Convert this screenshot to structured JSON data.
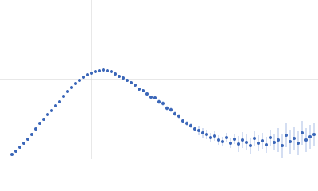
{
  "chart_data": {
    "type": "scatter",
    "x": [
      0.015,
      0.02,
      0.025,
      0.03,
      0.035,
      0.04,
      0.045,
      0.05,
      0.055,
      0.06,
      0.065,
      0.07,
      0.075,
      0.08,
      0.085,
      0.09,
      0.095,
      0.1,
      0.105,
      0.11,
      0.115,
      0.12,
      0.125,
      0.13,
      0.135,
      0.14,
      0.145,
      0.15,
      0.155,
      0.16,
      0.165,
      0.17,
      0.175,
      0.18,
      0.185,
      0.19,
      0.195,
      0.2,
      0.205,
      0.21,
      0.215,
      0.22,
      0.225,
      0.23,
      0.235,
      0.24,
      0.245,
      0.25,
      0.255,
      0.26,
      0.265,
      0.27,
      0.275,
      0.28,
      0.285,
      0.29,
      0.295,
      0.3,
      0.305,
      0.31,
      0.315,
      0.32,
      0.325,
      0.33,
      0.335,
      0.34,
      0.345,
      0.35,
      0.355,
      0.36,
      0.365,
      0.37,
      0.375,
      0.38,
      0.385,
      0.39,
      0.395
    ],
    "values": [
      0.06,
      0.1,
      0.15,
      0.2,
      0.25,
      0.31,
      0.38,
      0.45,
      0.5,
      0.56,
      0.61,
      0.67,
      0.72,
      0.79,
      0.85,
      0.9,
      0.95,
      0.99,
      1.03,
      1.06,
      1.08,
      1.1,
      1.11,
      1.12,
      1.11,
      1.1,
      1.07,
      1.04,
      1.02,
      0.99,
      0.96,
      0.93,
      0.88,
      0.86,
      0.82,
      0.78,
      0.77,
      0.72,
      0.7,
      0.64,
      0.62,
      0.57,
      0.54,
      0.48,
      0.45,
      0.42,
      0.38,
      0.36,
      0.33,
      0.31,
      0.27,
      0.29,
      0.24,
      0.22,
      0.27,
      0.2,
      0.25,
      0.19,
      0.24,
      0.21,
      0.17,
      0.26,
      0.2,
      0.23,
      0.18,
      0.27,
      0.21,
      0.24,
      0.17,
      0.3,
      0.22,
      0.26,
      0.2,
      0.33,
      0.24,
      0.28,
      0.31
    ],
    "errors": [
      0.005,
      0.005,
      0.005,
      0.005,
      0.005,
      0.005,
      0.005,
      0.005,
      0.005,
      0.005,
      0.005,
      0.005,
      0.005,
      0.005,
      0.005,
      0.005,
      0.005,
      0.005,
      0.005,
      0.005,
      0.005,
      0.005,
      0.005,
      0.005,
      0.005,
      0.005,
      0.005,
      0.01,
      0.01,
      0.01,
      0.01,
      0.01,
      0.01,
      0.01,
      0.01,
      0.01,
      0.01,
      0.03,
      0.03,
      0.03,
      0.03,
      0.03,
      0.03,
      0.03,
      0.03,
      0.03,
      0.03,
      0.06,
      0.06,
      0.06,
      0.06,
      0.06,
      0.06,
      0.06,
      0.06,
      0.06,
      0.06,
      0.1,
      0.1,
      0.1,
      0.1,
      0.1,
      0.1,
      0.1,
      0.1,
      0.1,
      0.1,
      0.15,
      0.15,
      0.15,
      0.15,
      0.15,
      0.15,
      0.15,
      0.15,
      0.15,
      0.15
    ],
    "color": "#3a66b8",
    "error_color": "#aabde4",
    "xlim": [
      0,
      0.4
    ],
    "ylim": [
      0,
      2
    ],
    "xticks": [
      0.115
    ],
    "yticks": [
      1
    ],
    "grid": true
  }
}
